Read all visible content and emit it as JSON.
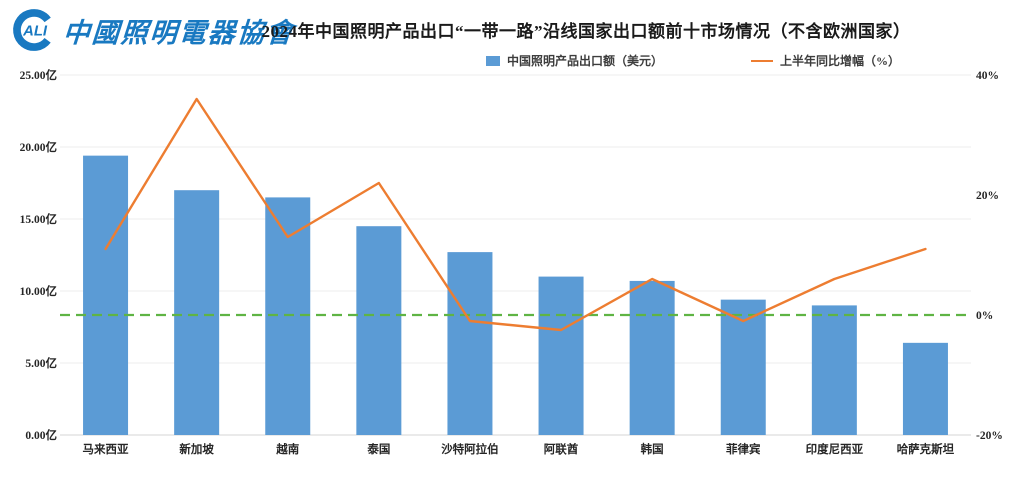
{
  "header": {
    "logo": {
      "badge": "ALI",
      "text": "中國照明電器協會"
    },
    "title": "2024年中国照明产品出口“一带一路”沿线国家出口额前十市场情况（不含欧洲国家）"
  },
  "legend": [
    {
      "type": "bar",
      "label": "中国照明产品出口额（美元）",
      "color": "#5B9BD5"
    },
    {
      "type": "line",
      "label": "上半年同比增幅（%）",
      "color": "#ED7D31"
    }
  ],
  "chart_data": {
    "type": "bar+line",
    "title": "2024年中国照明产品出口“一带一路”沿线国家出口额前十市场情况（不含欧洲国家）",
    "categories": [
      "马来西亚",
      "新加坡",
      "越南",
      "泰国",
      "沙特阿拉伯",
      "阿联酋",
      "韩国",
      "菲律宾",
      "印度尼西亚",
      "哈萨克斯坦"
    ],
    "series": [
      {
        "name": "中国照明产品出口额（美元）",
        "type": "bar",
        "axis": "left",
        "unit": "亿美元",
        "color": "#5B9BD5",
        "values": [
          19.4,
          17.0,
          16.5,
          14.5,
          12.7,
          11.0,
          10.7,
          9.4,
          9.0,
          6.4
        ]
      },
      {
        "name": "上半年同比增幅（%）",
        "type": "line",
        "axis": "right",
        "unit": "%",
        "color": "#ED7D31",
        "values": [
          11,
          36,
          13,
          22,
          -1,
          -2.5,
          6,
          -1,
          6,
          11
        ]
      }
    ],
    "left_axis": {
      "min": 0,
      "max": 25,
      "tick_values": [
        0,
        5,
        10,
        15,
        20,
        25
      ],
      "ticks": [
        "0.00亿",
        "5.00亿",
        "10.00亿",
        "15.00亿",
        "20.00亿",
        "25.00亿"
      ]
    },
    "right_axis": {
      "min": -20,
      "max": 40,
      "tick_values": [
        -20,
        0,
        20,
        40
      ],
      "ticks": [
        "-20%",
        "0%",
        "20%",
        "40%"
      ]
    },
    "reference_line": {
      "axis": "right",
      "value": 0,
      "color": "#5FB444",
      "style": "dashed"
    },
    "grid": true,
    "legend_position": "top"
  }
}
